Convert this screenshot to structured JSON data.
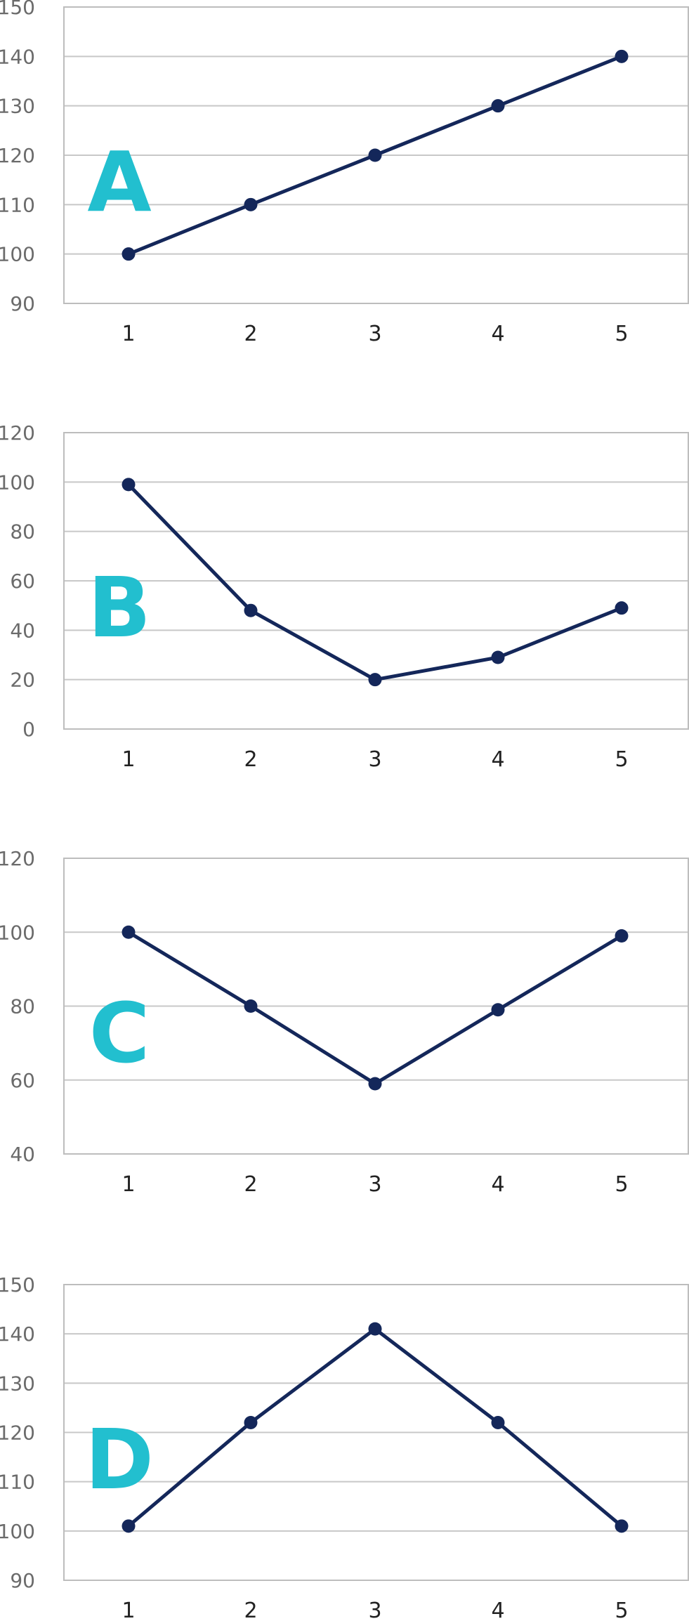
{
  "colors": {
    "line": "#14275a",
    "marker": "#14275a",
    "panel_label": "#22bfcf",
    "grid": "#c8c8c8",
    "frame": "#bdbdbd",
    "y_tick_text": "#6b6b6b",
    "x_tick_text": "#222222"
  },
  "chart_data": [
    {
      "type": "line",
      "label": "A",
      "x": [
        1,
        2,
        3,
        4,
        5
      ],
      "values": [
        100,
        110,
        120,
        130,
        140
      ],
      "ylim": [
        90,
        150
      ],
      "y_ticks": [
        90,
        100,
        110,
        120,
        130,
        140,
        150
      ],
      "x_tick_labels": [
        "1",
        "2",
        "3",
        "4",
        "5"
      ],
      "grid": true,
      "legend": false
    },
    {
      "type": "line",
      "label": "B",
      "x": [
        1,
        2,
        3,
        4,
        5
      ],
      "values": [
        99,
        48,
        20,
        29,
        49
      ],
      "ylim": [
        0,
        120
      ],
      "y_ticks": [
        0,
        20,
        40,
        60,
        80,
        100,
        120
      ],
      "x_tick_labels": [
        "1",
        "2",
        "3",
        "4",
        "5"
      ],
      "grid": true,
      "legend": false
    },
    {
      "type": "line",
      "label": "C",
      "x": [
        1,
        2,
        3,
        4,
        5
      ],
      "values": [
        100,
        80,
        59,
        79,
        99
      ],
      "ylim": [
        40,
        120
      ],
      "y_ticks": [
        40,
        60,
        80,
        100,
        120
      ],
      "x_tick_labels": [
        "1",
        "2",
        "3",
        "4",
        "5"
      ],
      "grid": true,
      "legend": false
    },
    {
      "type": "line",
      "label": "D",
      "x": [
        1,
        2,
        3,
        4,
        5
      ],
      "values": [
        101,
        122,
        141,
        122,
        101
      ],
      "ylim": [
        90,
        150
      ],
      "y_ticks": [
        90,
        100,
        110,
        120,
        130,
        140,
        150
      ],
      "x_tick_labels": [
        "1",
        "2",
        "3",
        "4",
        "5"
      ],
      "grid": true,
      "legend": false
    }
  ]
}
